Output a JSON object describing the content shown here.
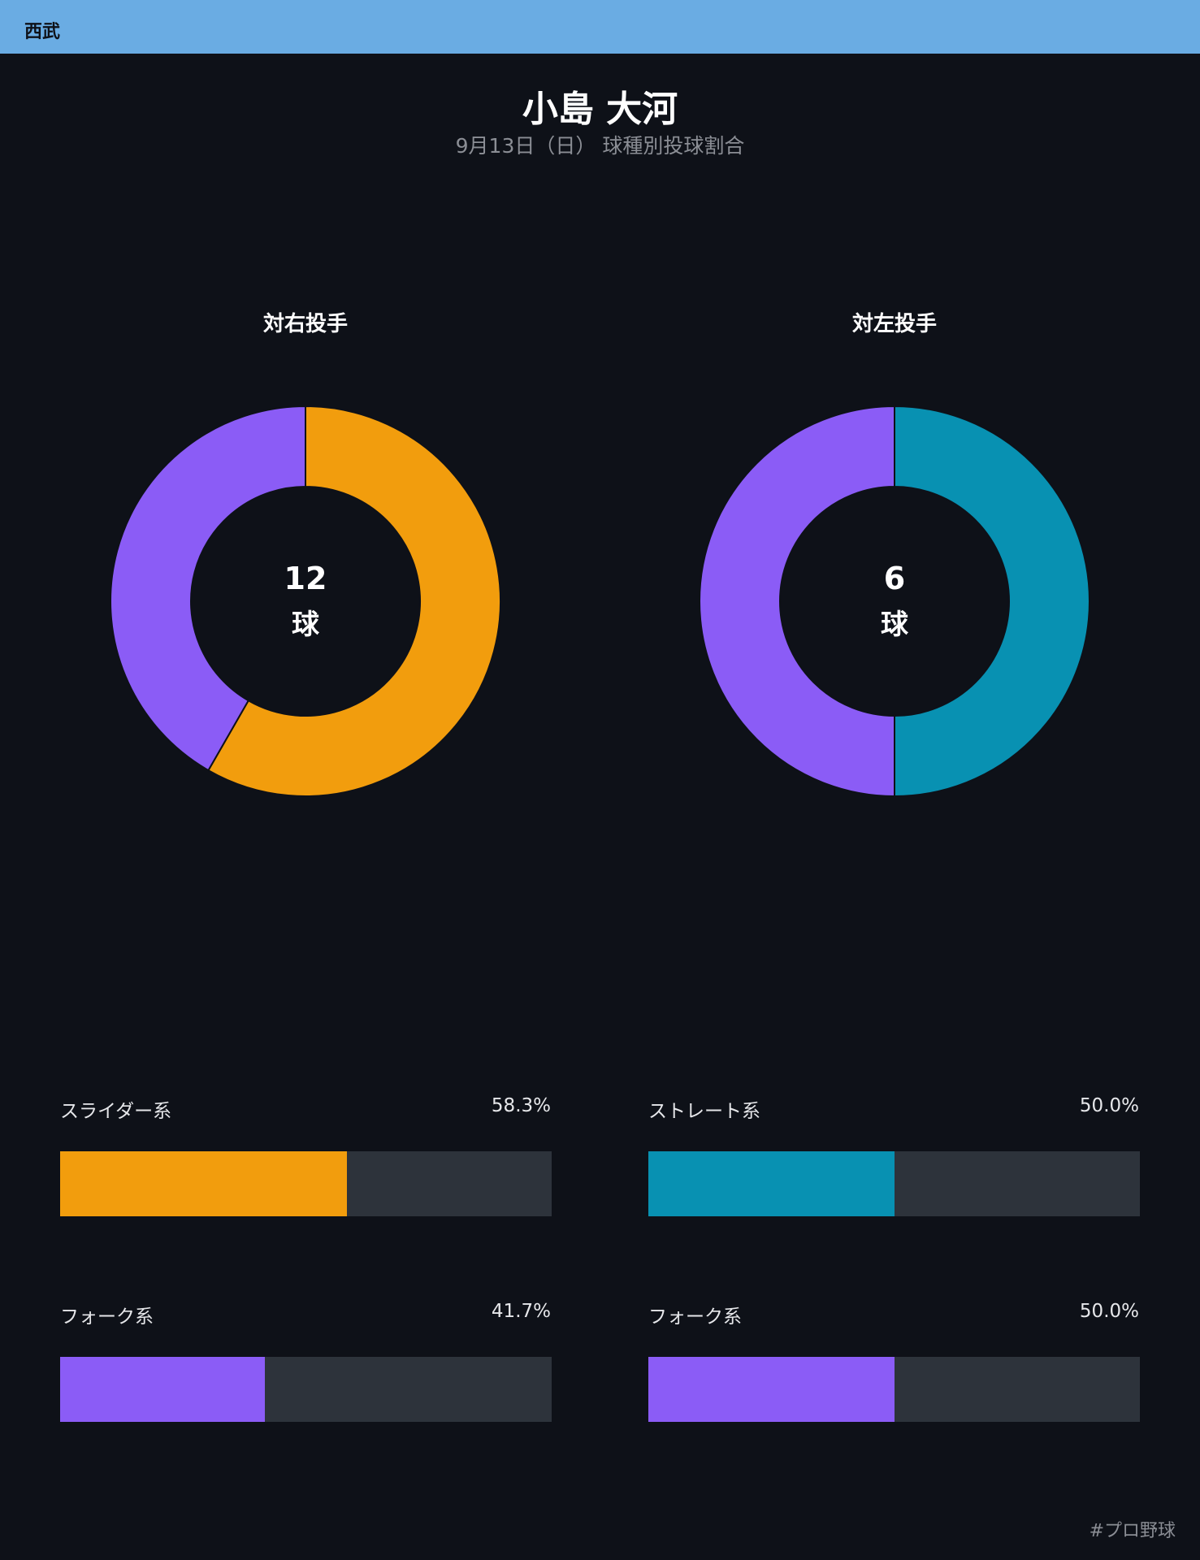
{
  "header": {
    "team": "西武",
    "color": "#6aace3"
  },
  "title": "小島 大河",
  "subtitle": "9月13日（日） 球種別投球割合",
  "chart_data": [
    {
      "type": "pie",
      "title": "対右投手",
      "center_value": "12",
      "center_unit": "球",
      "total": 12,
      "slices": [
        {
          "label": "スライダー系",
          "value": 58.3,
          "color": "#f29d0d"
        },
        {
          "label": "フォーク系",
          "value": 41.7,
          "color": "#8b5cf6"
        }
      ]
    },
    {
      "type": "pie",
      "title": "対左投手",
      "center_value": "6",
      "center_unit": "球",
      "total": 6,
      "slices": [
        {
          "label": "ストレート系",
          "value": 50.0,
          "color": "#0891b2"
        },
        {
          "label": "フォーク系",
          "value": 50.0,
          "color": "#8b5cf6"
        }
      ]
    }
  ],
  "bars": {
    "right": [
      {
        "label": "スライダー系",
        "pct_text": "58.3%",
        "value": 58.3,
        "color": "#f29d0d"
      },
      {
        "label": "フォーク系",
        "pct_text": "41.7%",
        "value": 41.7,
        "color": "#8b5cf6"
      }
    ],
    "left": [
      {
        "label": "ストレート系",
        "pct_text": "50.0%",
        "value": 50.0,
        "color": "#0891b2"
      },
      {
        "label": "フォーク系",
        "pct_text": "50.0%",
        "value": 50.0,
        "color": "#8b5cf6"
      }
    ]
  },
  "footer": {
    "hashtag": "#プロ野球"
  }
}
